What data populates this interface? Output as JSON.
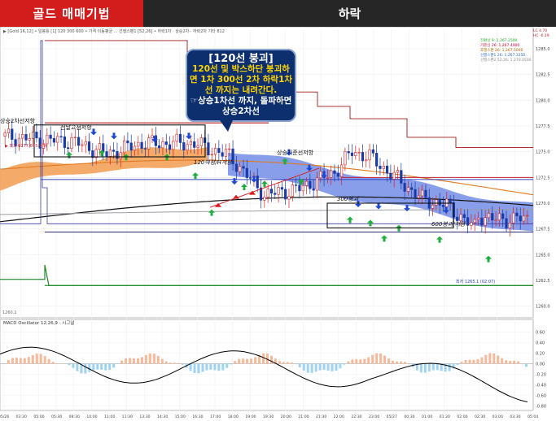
{
  "header": {
    "left_title": "골드 매매기법",
    "right_title": "하락"
  },
  "callout": {
    "title": "[120선 붕괴]",
    "line1": "120선 및 박스하단 붕괴하",
    "line2": "면 1차 300선 2차 하락1차",
    "line3": "선 까지는 내려간다.",
    "line4": "☞상승1차선 까지, 돌파하면",
    "line5": "상승2차선"
  },
  "colors": {
    "header_left": "#d31c1c",
    "header_right": "#262626",
    "candle_up": "#d62020",
    "candle_down": "#1a3aa8",
    "cloud_bull": "#f3a25a",
    "cloud_bear": "#7b93e8",
    "ma120": "#e07a1f",
    "ma300": "#111111",
    "ma600": "#9aa0a6",
    "macd_line": "#000000",
    "hist_pos": "#f7b999",
    "hist_neg": "#9fd3f0",
    "level_green": "#1f8a2a",
    "level_darkred": "#b01818"
  },
  "chart_data": {
    "type": "candlestick",
    "price_axis": {
      "ticks": [
        "1285.0",
        "1282.5",
        "1280.0",
        "1277.5",
        "1275.0",
        "1272.5",
        "1270.0",
        "1267.5",
        "1265.0",
        "1262.5",
        "1260.0"
      ],
      "range": [
        1259.5,
        1286.5
      ]
    },
    "top_label": "▶ [Gold 16,12] • 일봉틀 [1] 120 300 600 • 가격 이동평균 ... 선행스팬1 [52,26] • 하락1차 · 상승2차 · 하락2차 기타 812",
    "right_info": [
      "LC 4.70",
      "HC -6.19"
    ],
    "legend_right": [
      "전환선 9: 1,267.2500",
      "기준선 26: 1,267.4000",
      "후행스팬 26: 1,267.5000",
      "선행스팬1 26: 1,267.3250",
      "선행스팬2 52,26: 1,270.0500"
    ],
    "annotations": [
      {
        "text": "상승2차선저항"
      },
      {
        "text": "전날고점저항"
      },
      {
        "text": "상승기준선저항"
      },
      {
        "text": "120이평/H저항"
      },
      {
        "text": "300붕괴"
      },
      {
        "text": "600붕괴/저항"
      },
      {
        "text": "최저 1265.1 (02:07)"
      },
      {
        "text": "▶ 최고 1277.6 (5:4:9)"
      }
    ],
    "time_ticks": [
      "05/26",
      "03:30",
      "05:00",
      "05:30",
      "08:30",
      "10:00",
      "11:00",
      "11:30",
      "13:30",
      "14:30",
      "15:00",
      "16:30",
      "17:00",
      "18:00",
      "19:00",
      "19:30",
      "20:00",
      "21:00",
      "21:30",
      "22:00",
      "22:30",
      "23:00",
      "05/27",
      "00:30",
      "01:00",
      "01:30",
      "02:00",
      "02:30",
      "03:00",
      "03:30",
      "05:04"
    ],
    "macd": {
      "label": "MACD Oscillator 12,26,9 · 시그널",
      "ticks": [
        "0.60",
        "0.40",
        "0.20",
        "0.00",
        "-0.20",
        "-0.40",
        "-0.60",
        "-0.80"
      ],
      "range": [
        -0.85,
        0.65
      ]
    },
    "left_marker": "1260.1"
  }
}
